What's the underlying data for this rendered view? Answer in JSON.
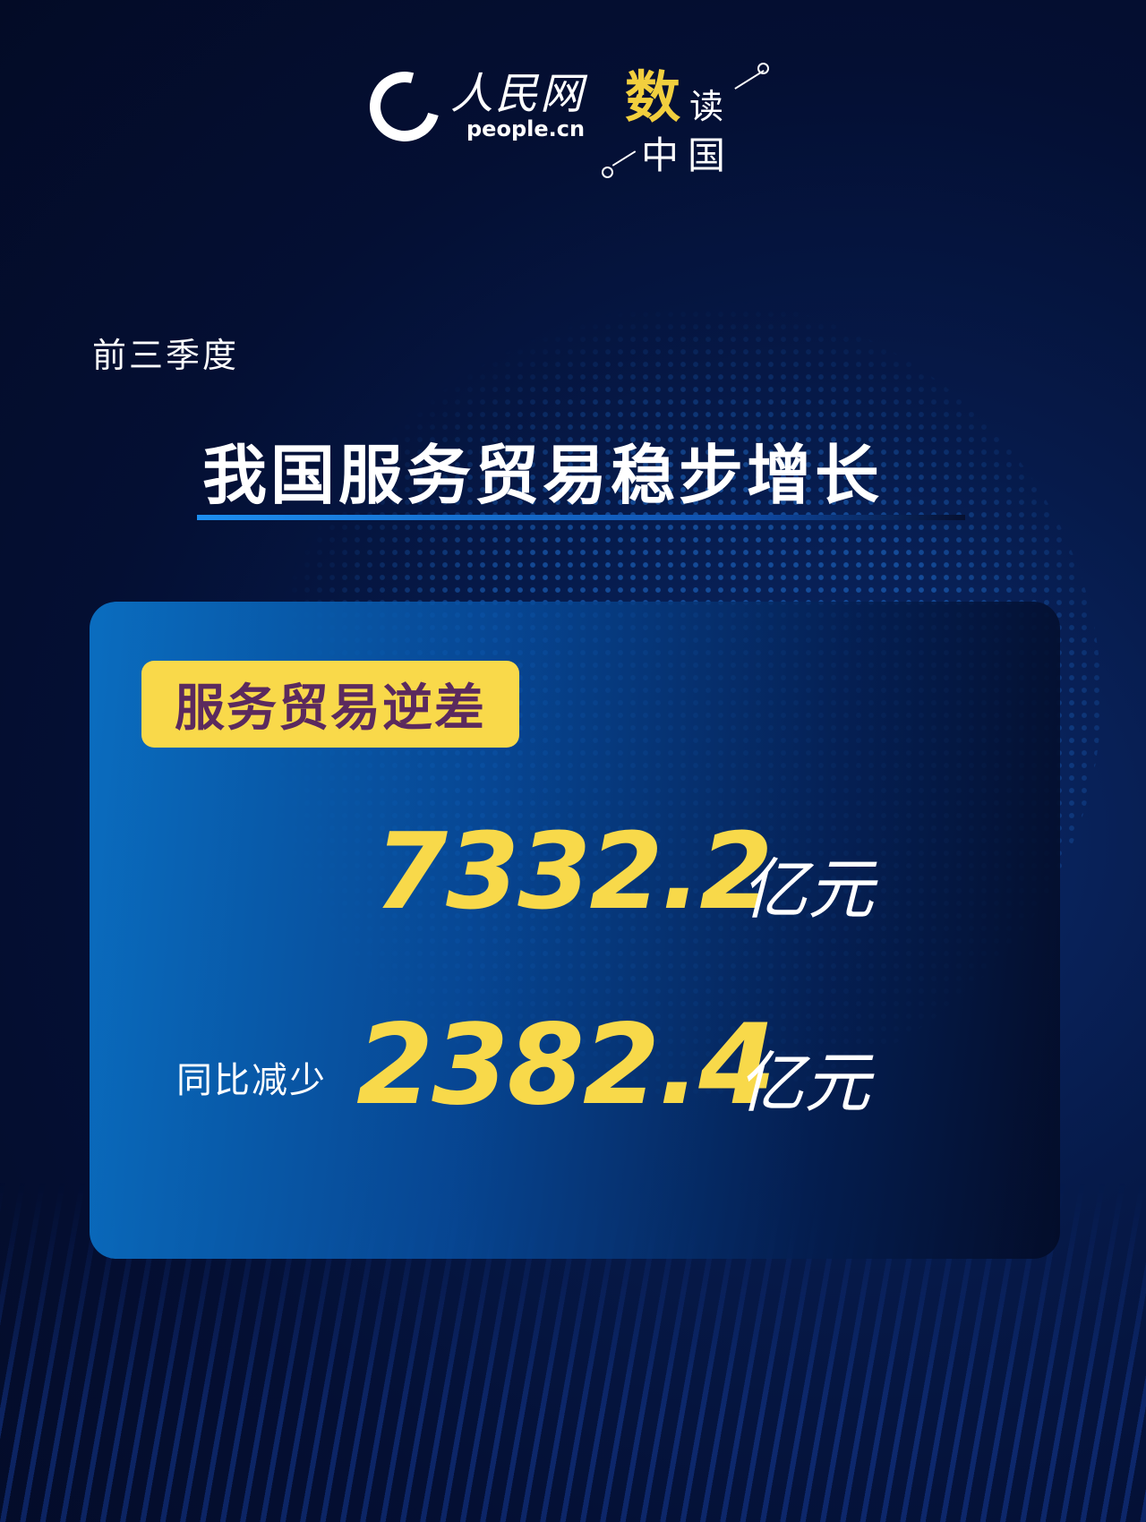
{
  "header": {
    "logo_cn": "人民网",
    "logo_en": "people.cn",
    "brand": {
      "char1": "数",
      "char2": "读",
      "line2": "中国"
    }
  },
  "subtitle": "前三季度",
  "title": "我国服务贸易稳步增长",
  "card": {
    "tag": "服务贸易逆差",
    "value": "7332.2",
    "value_unit": "亿元",
    "change_label": "同比减少",
    "change_value": "2382.4",
    "change_unit": "亿元"
  },
  "colors": {
    "accent_yellow": "#f8d94a",
    "tag_text": "#5b2a5e",
    "background": "#040f33"
  }
}
